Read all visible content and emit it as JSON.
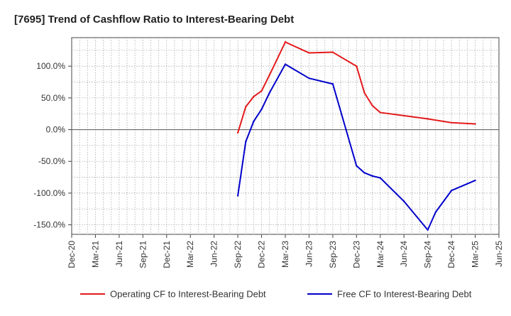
{
  "chart_data": {
    "type": "line",
    "title": "[7695]  Trend of Cashflow Ratio to Interest-Bearing Debt",
    "xlabel": "",
    "ylabel": "",
    "x_ticks": [
      "Dec-20",
      "Mar-21",
      "Jun-21",
      "Sep-21",
      "Dec-21",
      "Mar-22",
      "Jun-22",
      "Sep-22",
      "Dec-22",
      "Mar-23",
      "Jun-23",
      "Sep-23",
      "Dec-23",
      "Mar-24",
      "Jun-24",
      "Sep-24",
      "Dec-24",
      "Mar-25",
      "Jun-25"
    ],
    "y_ticks": [
      -150,
      -100,
      -50,
      0,
      50,
      100
    ],
    "y_tick_labels": [
      "-150.0%",
      "-100.0%",
      "-50.0%",
      "0.0%",
      "50.0%",
      "100.0%"
    ],
    "ylim": [
      -165,
      145
    ],
    "xlim": [
      "Dec-20",
      "Jun-25"
    ],
    "grid": true,
    "legend_position": "bottom",
    "series": [
      {
        "name": "Operating CF to Interest-Bearing Debt",
        "color": "#e41a1c",
        "points": [
          {
            "x": "Sep-22",
            "y": -5
          },
          {
            "x": "Oct-22",
            "y": 36
          },
          {
            "x": "Nov-22",
            "y": 52
          },
          {
            "x": "Dec-22",
            "y": 61
          },
          {
            "x": "Jan-23",
            "y": 86
          },
          {
            "x": "Mar-23",
            "y": 138
          },
          {
            "x": "Jun-23",
            "y": 121
          },
          {
            "x": "Sep-23",
            "y": 122
          },
          {
            "x": "Dec-23",
            "y": 100
          },
          {
            "x": "Jan-24",
            "y": 58
          },
          {
            "x": "Feb-24",
            "y": 38
          },
          {
            "x": "Mar-24",
            "y": 27
          },
          {
            "x": "Jun-24",
            "y": 22
          },
          {
            "x": "Sep-24",
            "y": 17
          },
          {
            "x": "Dec-24",
            "y": 11
          },
          {
            "x": "Mar-25",
            "y": 9
          }
        ]
      },
      {
        "name": "Free CF to Interest-Bearing Debt",
        "color": "#0000cc",
        "points": [
          {
            "x": "Sep-22",
            "y": -104
          },
          {
            "x": "Oct-22",
            "y": -19
          },
          {
            "x": "Nov-22",
            "y": 13
          },
          {
            "x": "Dec-22",
            "y": 32
          },
          {
            "x": "Jan-23",
            "y": 58
          },
          {
            "x": "Mar-23",
            "y": 103
          },
          {
            "x": "Jun-23",
            "y": 81
          },
          {
            "x": "Sep-23",
            "y": 72
          },
          {
            "x": "Dec-23",
            "y": -57
          },
          {
            "x": "Jan-24",
            "y": -68
          },
          {
            "x": "Feb-24",
            "y": -73
          },
          {
            "x": "Mar-24",
            "y": -76
          },
          {
            "x": "Jun-24",
            "y": -113
          },
          {
            "x": "Sep-24",
            "y": -158
          },
          {
            "x": "Oct-24",
            "y": -130
          },
          {
            "x": "Dec-24",
            "y": -96
          },
          {
            "x": "Mar-25",
            "y": -80
          }
        ]
      }
    ]
  }
}
